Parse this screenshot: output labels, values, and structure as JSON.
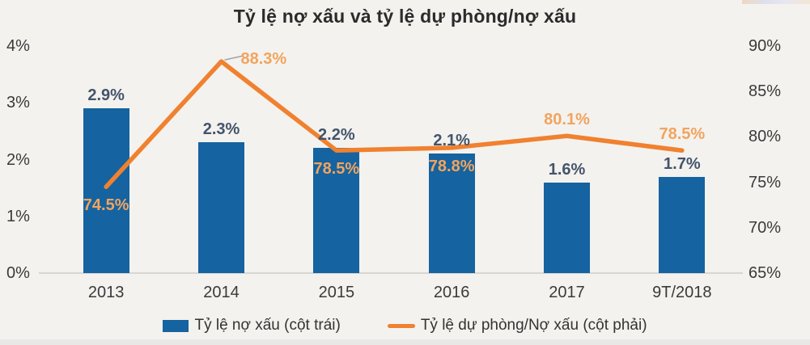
{
  "title": "Tỷ lệ nợ xấu và tỷ lệ dự phòng/nợ xấu",
  "chart_data": {
    "type": "combo-bar-line",
    "title": "Tỷ lệ nợ xấu và tỷ lệ dự phòng/nợ xấu",
    "categories": [
      "2013",
      "2014",
      "2015",
      "2016",
      "2017",
      "9T/2018"
    ],
    "series": [
      {
        "name": "Tỷ lệ nợ xấu (cột trái)",
        "type": "bar",
        "axis": "left",
        "color": "#1563A0",
        "values": [
          2.9,
          2.3,
          2.2,
          2.1,
          1.6,
          1.7
        ],
        "labels": [
          "2.9%",
          "2.3%",
          "2.2%",
          "2.1%",
          "1.6%",
          "1.7%"
        ],
        "label_color": "#44546A"
      },
      {
        "name": "Tỷ lệ dự phòng/Nợ xấu (cột phải)",
        "type": "line",
        "axis": "right",
        "color": "#F0812F",
        "values": [
          74.5,
          88.3,
          78.5,
          78.8,
          80.1,
          78.5
        ],
        "labels": [
          "74.5%",
          "88.3%",
          "78.5%",
          "78.8%",
          "80.1%",
          "78.5%"
        ],
        "label_color": "#F2A45E",
        "label_positions": [
          "below",
          "right-leader",
          "below",
          "below",
          "above",
          "above"
        ]
      }
    ],
    "left_axis": {
      "min": 0,
      "max": 4,
      "ticks": [
        "0%",
        "1%",
        "2%",
        "3%",
        "4%"
      ]
    },
    "right_axis": {
      "min": 65,
      "max": 90,
      "ticks": [
        "65%",
        "70%",
        "75%",
        "80%",
        "85%",
        "90%"
      ]
    },
    "grid": false,
    "legend_position": "bottom"
  },
  "legend": {
    "items": [
      {
        "label": "Tỷ lệ nợ xấu (cột trái)",
        "swatch": "bar",
        "color": "#1563A0"
      },
      {
        "label": "Tỷ lệ dự phòng/Nợ xấu (cột phải)",
        "swatch": "line",
        "color": "#F0812F"
      }
    ]
  }
}
